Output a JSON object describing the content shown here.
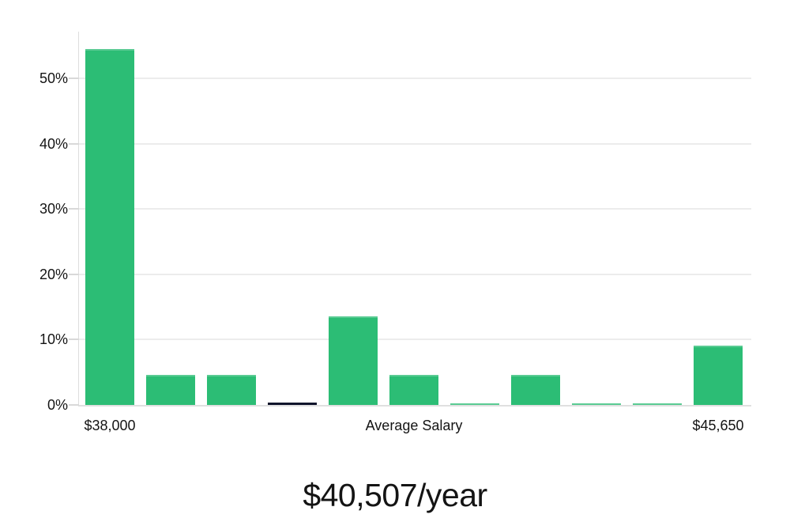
{
  "chart_data": {
    "type": "bar",
    "title": "$40,507/year",
    "xlabel": "",
    "ylabel": "",
    "ylim": [
      0,
      57.2
    ],
    "grid": true,
    "y_axis": {
      "tick_values": [
        0,
        10,
        20,
        30,
        40,
        50
      ],
      "tick_labels": [
        "0%",
        "10%",
        "20%",
        "30%",
        "40%",
        "50%"
      ]
    },
    "x_axis": {
      "tick_labels": [
        {
          "bar_index": 0,
          "label": "$38,000"
        },
        {
          "bar_index": 5,
          "label": "Average Salary"
        },
        {
          "bar_index": 10,
          "label": "$45,650"
        }
      ]
    },
    "bars": [
      {
        "value_pct": 54.5,
        "role": "normal"
      },
      {
        "value_pct": 4.6,
        "role": "normal"
      },
      {
        "value_pct": 4.6,
        "role": "normal"
      },
      {
        "value_pct": 0.4,
        "role": "highlight-dark"
      },
      {
        "value_pct": 13.6,
        "role": "normal"
      },
      {
        "value_pct": 4.6,
        "role": "normal"
      },
      {
        "value_pct": 0.25,
        "role": "normal"
      },
      {
        "value_pct": 4.6,
        "role": "normal"
      },
      {
        "value_pct": 0.25,
        "role": "normal"
      },
      {
        "value_pct": 0.25,
        "role": "normal"
      },
      {
        "value_pct": 9.1,
        "role": "normal"
      }
    ],
    "colors": {
      "bar_green": "#2cbd75",
      "bar_dark": "#10142b",
      "gridline": "#ececec",
      "axis": "#e0e0e0",
      "text": "#141414"
    }
  }
}
